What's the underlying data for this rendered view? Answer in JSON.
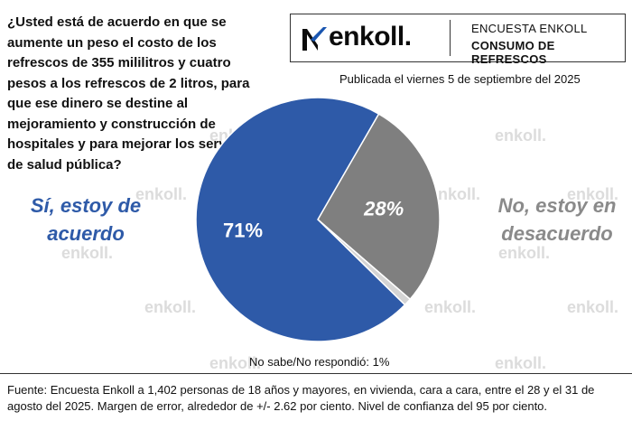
{
  "question": "¿Usted está de acuerdo en que se aumente un peso el costo de los refrescos de 355 mililitros y cuatro pesos a los refrescos de 2 litros, para que ese dinero se destine al mejoramiento y construcción de hospitales y para mejorar los servicios de salud pública?",
  "brand": {
    "logo_text": "enkoll.",
    "survey_title": "ENCUESTA ENKOLL",
    "survey_topic": "CONSUMO DE REFRESCOS"
  },
  "published": "Publicada el viernes 5 de septiembre del 2025",
  "watermark": "enkoll.",
  "chart_data": {
    "type": "pie",
    "title": "",
    "slices": [
      {
        "label": "Sí, estoy de acuerdo",
        "value": 71,
        "value_label": "71%",
        "color": "#2e5aa8",
        "text_color": "#ffffff"
      },
      {
        "label": "No, estoy en desacuerdo",
        "value": 28,
        "value_label": "28%",
        "color": "#7f7f7f",
        "text_color": "#ffffff"
      },
      {
        "label": "No sabe/No respondió",
        "value": 1,
        "value_label": "1%",
        "color": "#d4d4d4",
        "text_color": "#111111"
      }
    ]
  },
  "labels": {
    "yes_line1": "Sí, estoy de",
    "yes_line2": "acuerdo",
    "no_line1": "No, estoy en",
    "no_line2": "desacuerdo",
    "nsnc": "No sabe/No respondió: 1%"
  },
  "source": "Fuente: Encuesta Enkoll a 1,402 personas de 18 años y mayores, en vivienda, cara a cara, entre el 28 y el 31 de agosto del 2025. Margen de error, alrededor de +/- 2.62 por ciento. Nivel de confianza del 95 por ciento."
}
